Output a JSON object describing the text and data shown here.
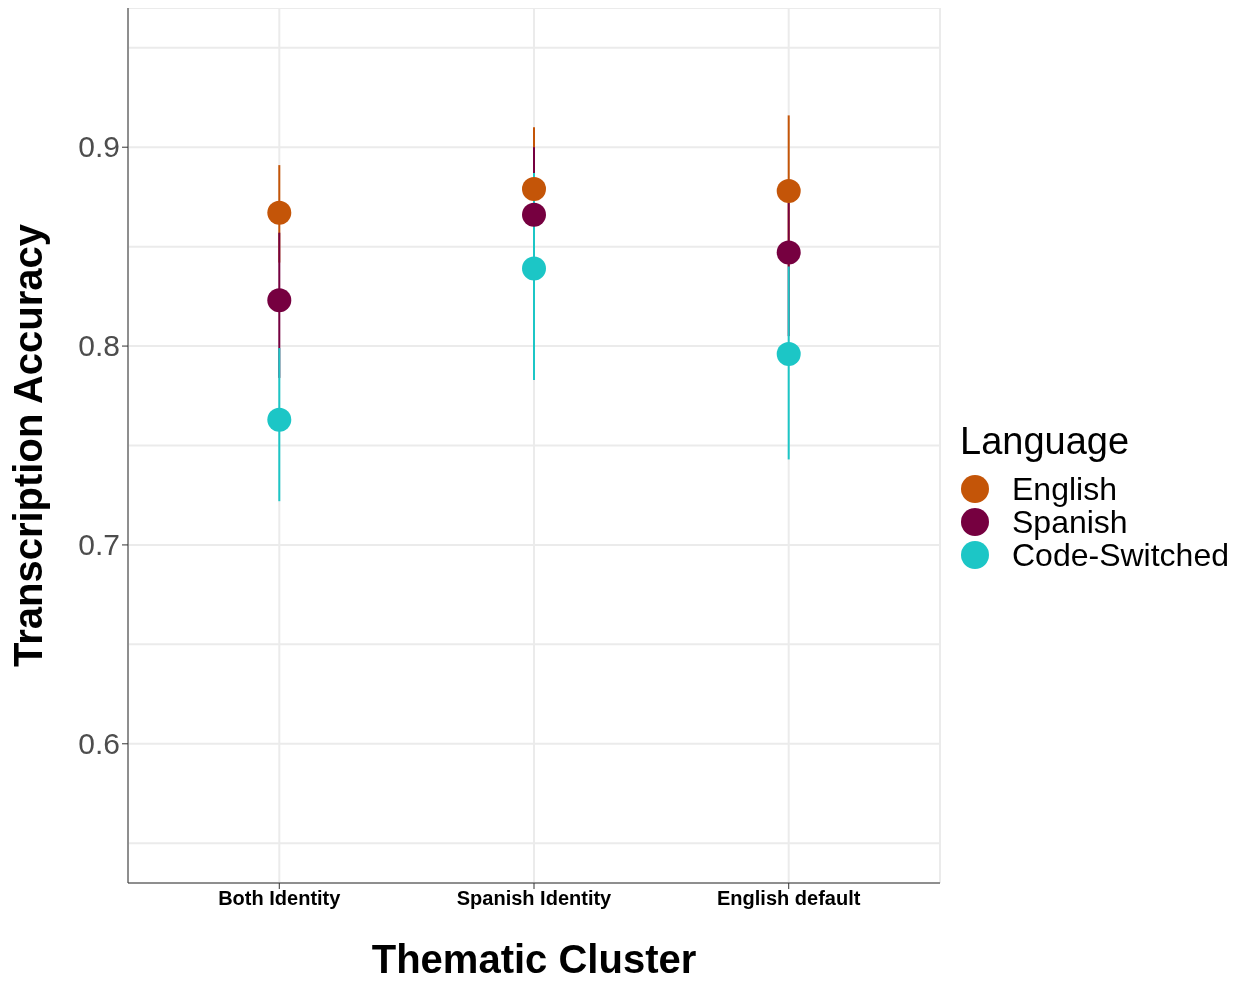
{
  "chart_data": {
    "type": "scatter",
    "xlabel": "Thematic Cluster",
    "ylabel": "Transcription Accuracy",
    "legend_title": "Language",
    "categories": [
      "Both Identity",
      "Spanish Identity",
      "English default"
    ],
    "series": [
      {
        "name": "English",
        "color": "#c45508",
        "values": [
          0.867,
          0.879,
          0.878
        ],
        "errors": [
          [
            0.842,
            0.891
          ],
          [
            0.848,
            0.91
          ],
          [
            0.84,
            0.916
          ]
        ]
      },
      {
        "name": "Spanish",
        "color": "#760040",
        "values": [
          0.823,
          0.866,
          0.847
        ],
        "errors": [
          [
            0.784,
            0.857
          ],
          [
            0.831,
            0.9
          ],
          [
            0.805,
            0.872
          ]
        ]
      },
      {
        "name": "Code-Switched",
        "color": "#1cc6c6",
        "values": [
          0.763,
          0.839,
          0.796
        ],
        "errors": [
          [
            0.722,
            0.799
          ],
          [
            0.783,
            0.887
          ],
          [
            0.743,
            0.84
          ]
        ]
      }
    ],
    "ylim": [
      0.53,
      0.97
    ],
    "yticks": [
      {
        "value": 0.55,
        "label": null
      },
      0.6,
      {
        "value": 0.65,
        "label": null
      },
      0.7,
      {
        "value": 0.75,
        "label": null
      },
      0.8,
      {
        "value": 0.85,
        "label": null
      },
      0.9,
      {
        "value": 0.95,
        "label": null
      }
    ],
    "grid": true,
    "legend": "right",
    "marker": "circle"
  }
}
